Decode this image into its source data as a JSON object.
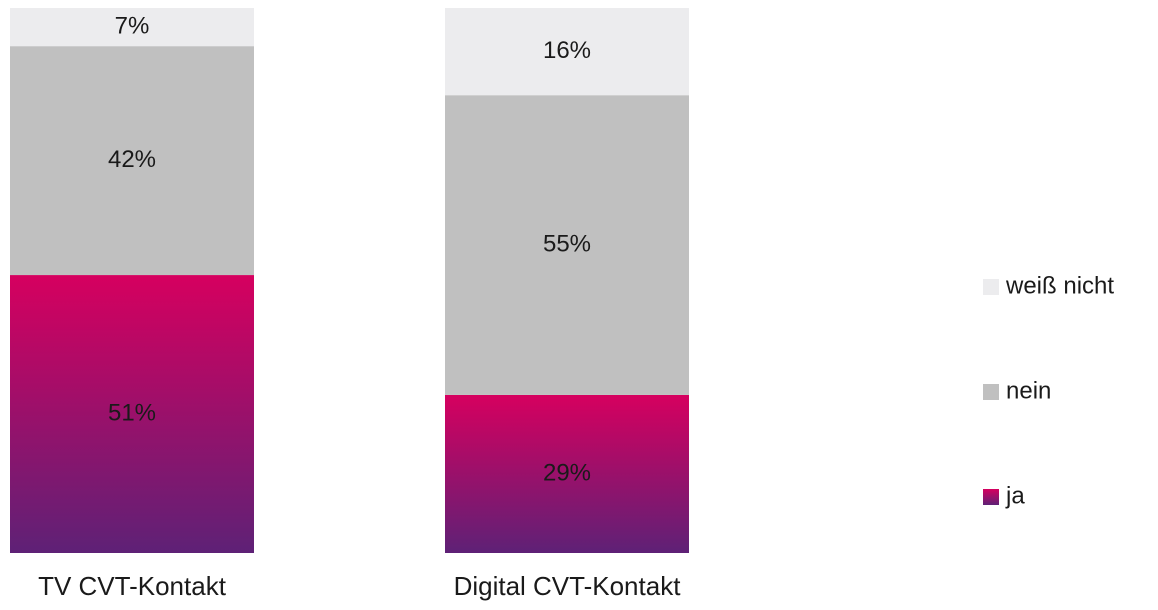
{
  "chart_data": {
    "type": "stacked_bar",
    "categories": [
      "TV CVT-Kontakt",
      "Digital CVT-Kontakt"
    ],
    "series": [
      {
        "name": "ja",
        "color": "#d6005f",
        "values": [
          51,
          29
        ],
        "value_labels": [
          "51%",
          "29%"
        ]
      },
      {
        "name": "nein",
        "color": "#c0c0c0",
        "values": [
          42,
          55
        ],
        "value_labels": [
          "42%",
          "55%"
        ]
      },
      {
        "name": "weiß nicht",
        "color": "#ececee",
        "values": [
          7,
          16
        ],
        "value_labels": [
          "7%",
          "16%"
        ]
      }
    ],
    "legend": "right"
  }
}
